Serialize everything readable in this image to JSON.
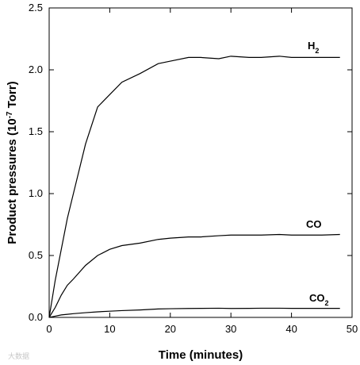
{
  "chart_data": {
    "type": "line",
    "xlabel": "Time (minutes)",
    "ylabel_main": "Product pressures (10",
    "ylabel_sup": "-7",
    "ylabel_tail": " Torr)",
    "xlim": [
      0,
      50
    ],
    "ylim": [
      0,
      2.5
    ],
    "x_ticks": [
      0,
      10,
      20,
      30,
      40,
      50
    ],
    "y_ticks": [
      0.0,
      0.5,
      1.0,
      1.5,
      2.0,
      2.5
    ],
    "x_tick_labels": [
      "0",
      "10",
      "20",
      "30",
      "40",
      "50"
    ],
    "y_tick_labels": [
      "0.0",
      "0.5",
      "1.0",
      "1.5",
      "2.0",
      "2.5"
    ],
    "grid": false,
    "series": [
      {
        "label_main": "H",
        "label_sub": "2",
        "color": "#000000",
        "x": [
          0,
          1,
          2,
          3,
          4,
          6,
          8,
          10,
          12,
          15,
          18,
          20,
          23,
          25,
          28,
          30,
          33,
          35,
          38,
          40,
          43,
          45,
          48
        ],
        "y": [
          0.0,
          0.3,
          0.55,
          0.8,
          1.0,
          1.4,
          1.7,
          1.8,
          1.9,
          1.97,
          2.05,
          2.07,
          2.1,
          2.1,
          2.09,
          2.11,
          2.1,
          2.1,
          2.11,
          2.1,
          2.1,
          2.1,
          2.1
        ]
      },
      {
        "label_main": "CO",
        "label_sub": "",
        "color": "#000000",
        "x": [
          0,
          1,
          2,
          3,
          4,
          6,
          8,
          10,
          12,
          15,
          18,
          20,
          23,
          25,
          28,
          30,
          33,
          35,
          38,
          40,
          43,
          45,
          48
        ],
        "y": [
          0.0,
          0.08,
          0.18,
          0.26,
          0.31,
          0.42,
          0.5,
          0.55,
          0.58,
          0.6,
          0.63,
          0.64,
          0.65,
          0.65,
          0.66,
          0.665,
          0.665,
          0.665,
          0.67,
          0.665,
          0.665,
          0.665,
          0.67
        ]
      },
      {
        "label_main": "CO",
        "label_sub": "2",
        "color": "#000000",
        "x": [
          0,
          1,
          2,
          3,
          4,
          6,
          8,
          10,
          12,
          15,
          18,
          20,
          23,
          25,
          28,
          30,
          33,
          35,
          38,
          40,
          43,
          45,
          48
        ],
        "y": [
          0.0,
          0.01,
          0.02,
          0.025,
          0.03,
          0.038,
          0.045,
          0.05,
          0.055,
          0.06,
          0.068,
          0.07,
          0.072,
          0.073,
          0.074,
          0.072,
          0.073,
          0.074,
          0.074,
          0.073,
          0.073,
          0.073,
          0.073
        ]
      }
    ]
  },
  "watermark": "大数据"
}
